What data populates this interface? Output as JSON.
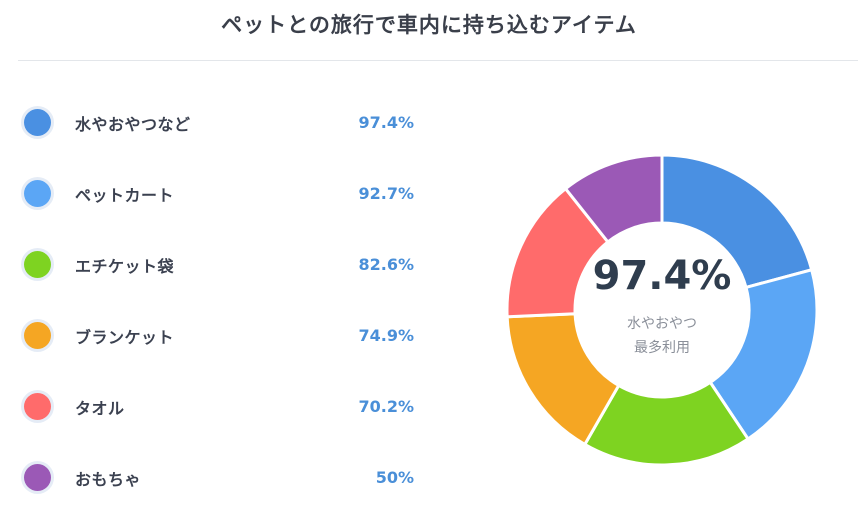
{
  "chart_data": {
    "type": "pie",
    "title": "ペットとの旅行で車内に持ち込むアイテム",
    "categories": [
      "水やおやつなど",
      "ペットカート",
      "エチケット袋",
      "ブランケット",
      "タオル",
      "おもちゃ"
    ],
    "values": [
      97.4,
      92.7,
      82.6,
      74.9,
      70.2,
      50
    ],
    "value_labels": [
      "97.4%",
      "92.7%",
      "82.6%",
      "74.9%",
      "70.2%",
      "50%"
    ],
    "colors": [
      "#4a90e2",
      "#5ba6f5",
      "#7ed321",
      "#f5a623",
      "#ff6b6b",
      "#9b59b6"
    ],
    "legend_placement": "left",
    "center": {
      "value": "97.4%",
      "line1": "水やおやつ",
      "line2": "最多利用"
    }
  }
}
